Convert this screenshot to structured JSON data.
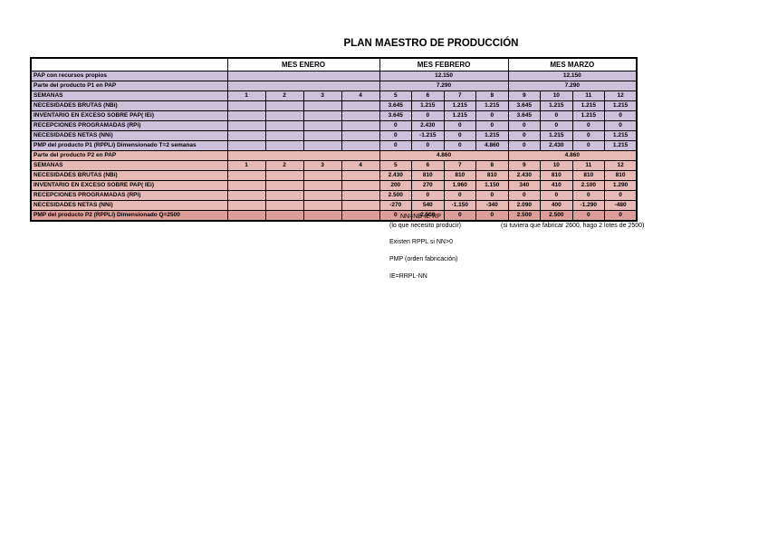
{
  "title": "PLAN MAESTRO DE PRODUCCIÓN",
  "colors": {
    "p1_fill": "#ccc0da",
    "p2_fill": "#e8bab6",
    "p2_pmp_fill": "#dd9d99",
    "border": "#000000",
    "month_header_fill": "#ffffff"
  },
  "table": {
    "months": [
      {
        "label": "MES ENERO",
        "weeks": [
          "1",
          "2",
          "3",
          "4"
        ]
      },
      {
        "label": "MES FEBRERO",
        "weeks": [
          "5",
          "6",
          "7",
          "8"
        ]
      },
      {
        "label": "MES MARZO",
        "weeks": [
          "9",
          "10",
          "11",
          "12"
        ]
      }
    ],
    "sections": [
      {
        "name": "p1",
        "fill": "#ccc0da",
        "merged_rows": [
          {
            "label": "PAP con recursos propios",
            "values": [
              "",
              "12.150",
              "12.150"
            ]
          },
          {
            "label": "Parte del producto P1 en PAP",
            "values": [
              "",
              "7.290",
              "7.290"
            ]
          }
        ],
        "weeks_label": "SEMANAS",
        "rows": [
          {
            "label": "NECESIDADES BRUTAS (NBi)",
            "values": [
              "",
              "",
              "",
              "",
              "3.645",
              "1.215",
              "1.215",
              "1.215",
              "3.645",
              "1.215",
              "1.215",
              "1.215"
            ]
          },
          {
            "label": "INVENTARIO EN EXCESO SOBRE PAP( IEi)",
            "values": [
              "",
              "",
              "",
              "",
              "3.645",
              "0",
              "1.215",
              "0",
              "3.645",
              "0",
              "1.215",
              "0"
            ]
          },
          {
            "label": "RECEPCIONES PROGRAMADAS (RPi)",
            "values": [
              "",
              "",
              "",
              "",
              "0",
              "2.430",
              "0",
              "0",
              "0",
              "0",
              "0",
              "0"
            ]
          },
          {
            "label": "NECESIDADES NETAS (NNi)",
            "values": [
              "",
              "",
              "",
              "",
              "0",
              "-1.215",
              "0",
              "1.215",
              "0",
              "1.215",
              "0",
              "1.215"
            ]
          },
          {
            "label": "PMP del producto P1 (RPPLi) Dimensionado T=2 semanas",
            "values": [
              "",
              "",
              "",
              "",
              "0",
              "0",
              "0",
              "4.860",
              "0",
              "2.430",
              "0",
              "1.215"
            ]
          }
        ]
      },
      {
        "name": "p2",
        "fill": "#e8bab6",
        "merged_rows": [
          {
            "label": "Parte del producto P2 en PAP",
            "values": [
              "",
              "4.860",
              "4.860"
            ]
          }
        ],
        "weeks_label": "SEMANAS",
        "rows": [
          {
            "label": "NECESIDADES BRUTAS (NBi)",
            "values": [
              "",
              "",
              "",
              "",
              "2.430",
              "810",
              "810",
              "810",
              "2.430",
              "810",
              "810",
              "810"
            ]
          },
          {
            "label": "INVENTARIO EN EXCESO SOBRE PAP( IEi)",
            "values": [
              "",
              "",
              "",
              "",
              "200",
              "270",
              "1.960",
              "1.150",
              "340",
              "410",
              "2.100",
              "1.290"
            ]
          },
          {
            "label": "RECEPCIONES PROGRAMADAS (RPi)",
            "values": [
              "",
              "",
              "",
              "",
              "2.500",
              "0",
              "0",
              "0",
              "0",
              "0",
              "0",
              "0"
            ]
          },
          {
            "label": "NECESIDADES NETAS (NNi)",
            "values": [
              "",
              "",
              "",
              "",
              "-270",
              "540",
              "-1.150",
              "-340",
              "2.090",
              "400",
              "-1.290",
              "-480"
            ]
          },
          {
            "label": "PMP del producto P2 (RPPLi) Dimensionado Q=2500",
            "fill": "#dd9d99",
            "values": [
              "",
              "",
              "",
              "",
              "0",
              "2.500",
              "0",
              "0",
              "2.500",
              "2.500",
              "0",
              "0"
            ]
          }
        ]
      }
    ]
  },
  "notes": {
    "formula_nn": "NN=NB-IE-RP",
    "produce": "(lo que necesito producir)",
    "lotes": "(si tuviera que fabricar 2600, hago 2 lotes de 2500)",
    "existen": "Existen RPPL si NN>0",
    "pmp": "PMP (orden fabricación)",
    "formula_ie": "IE=RRPL-NN"
  }
}
